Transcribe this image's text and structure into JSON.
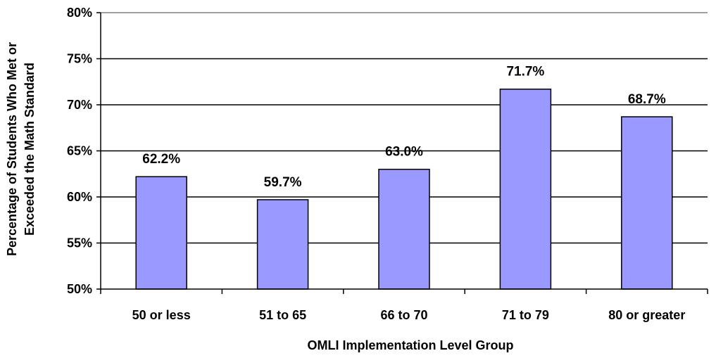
{
  "chart_data": {
    "type": "bar",
    "categories": [
      "50 or less",
      "51 to 65",
      "66 to 70",
      "71 to 79",
      "80 or greater"
    ],
    "values": [
      62.2,
      59.7,
      63.0,
      71.7,
      68.7
    ],
    "data_labels": [
      "62.2%",
      "59.7%",
      "63.0%",
      "71.7%",
      "68.7%"
    ],
    "title": "",
    "xlabel": "OMLI Implementation Level Group",
    "ylabel_lines": [
      "Percentage of Students Who Met or",
      "Exceeded the Math Standard"
    ],
    "ylim": [
      50,
      80
    ],
    "yticks": [
      50,
      55,
      60,
      65,
      70,
      75,
      80
    ],
    "ytick_labels": [
      "50%",
      "55%",
      "60%",
      "65%",
      "70%",
      "75%",
      "80%"
    ],
    "grid": true,
    "legend": "none",
    "colors": {
      "bar_fill": "#9999FF",
      "bar_stroke": "#000000",
      "gridline": "#000000",
      "axis": "#000000",
      "plot_frame_top": "#808080"
    }
  }
}
